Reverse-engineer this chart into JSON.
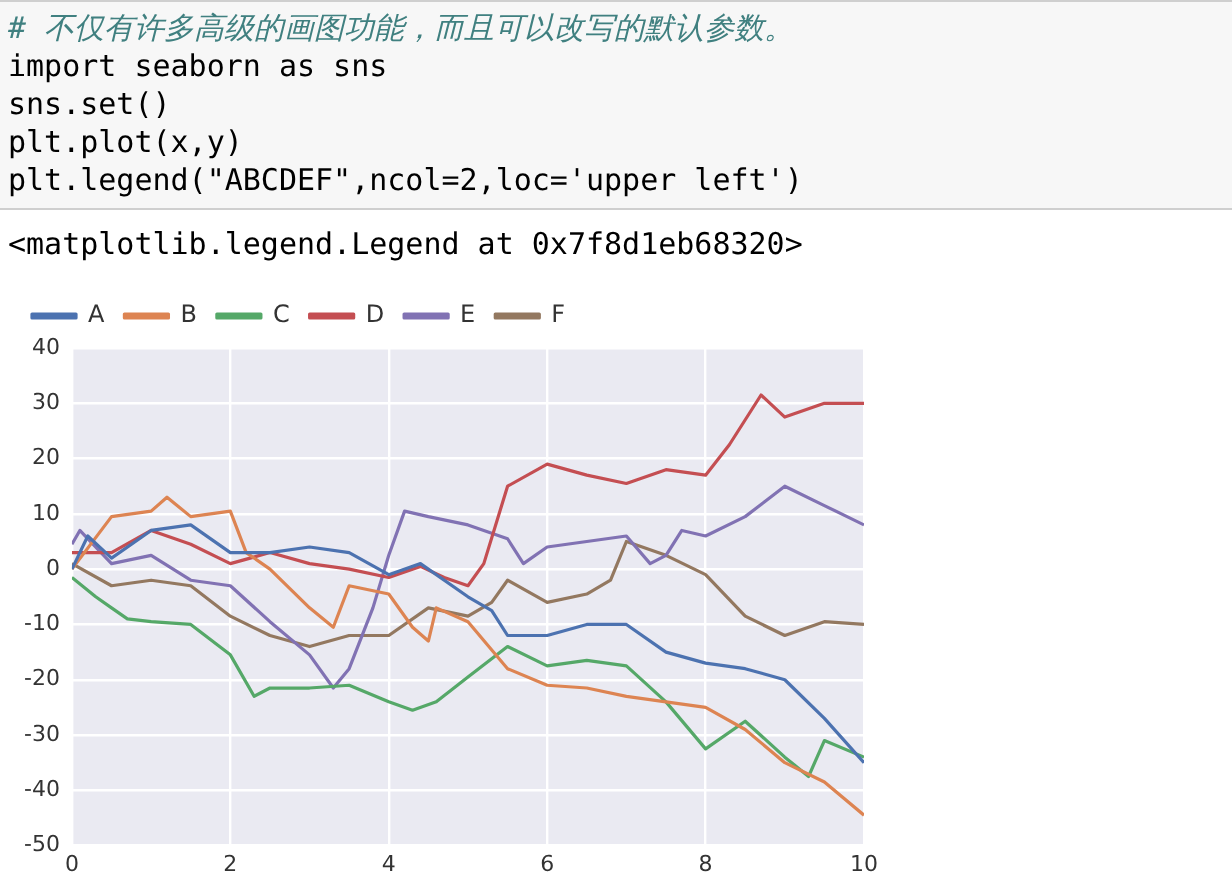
{
  "chart_data": {
    "type": "line",
    "annotations": [
      "# 不仅有许多高级的画图功能，而且可以改写的默认参数。",
      "import seaborn as sns",
      "sns.set()",
      "plt.plot(x,y)",
      "plt.legend(\"ABCDEF\",ncol=2,loc='upper left')",
      "<matplotlib.legend.Legend at 0x7f8d1eb68320>"
    ],
    "series": [
      {
        "name": "A",
        "color": "#4c72b0",
        "x": [
          0,
          0.2,
          0.5,
          1,
          1.5,
          2,
          2.5,
          3,
          3.5,
          4,
          4.4,
          5,
          5.3,
          5.5,
          6,
          6.5,
          7,
          7.5,
          8,
          8.5,
          9,
          9.5,
          10
        ],
        "values": [
          0,
          6,
          2,
          7,
          8,
          3,
          3,
          4,
          3,
          -1,
          1,
          -5,
          -7.5,
          -12,
          -12,
          -10,
          -10,
          -15,
          -17,
          -18,
          -20,
          -27,
          -35
        ]
      },
      {
        "name": "B",
        "color": "#dd8452",
        "x": [
          0,
          0.5,
          1,
          1.2,
          1.5,
          2,
          2.2,
          2.5,
          3,
          3.3,
          3.5,
          4,
          4.3,
          4.5,
          4.6,
          5,
          5.5,
          6,
          6.5,
          7,
          7.5,
          8,
          8.5,
          9,
          9.5,
          10
        ],
        "values": [
          0,
          9.5,
          10.5,
          13,
          9.5,
          10.5,
          3,
          0,
          -7,
          -10.5,
          -3,
          -4.5,
          -10.5,
          -13,
          -7,
          -9.5,
          -18,
          -21,
          -21.5,
          -23,
          -24,
          -25,
          -29,
          -35,
          -38.5,
          -44.5
        ]
      },
      {
        "name": "C",
        "color": "#55a868",
        "x": [
          0,
          0.3,
          0.5,
          0.7,
          1,
          1.5,
          2,
          2.3,
          2.5,
          3,
          3.5,
          4,
          4.3,
          4.6,
          5,
          5.5,
          6,
          6.5,
          7,
          7.5,
          8,
          8.5,
          9,
          9.3,
          9.5,
          10
        ],
        "values": [
          -1.5,
          -5,
          -7,
          -9,
          -9.5,
          -10,
          -15.5,
          -23,
          -21.5,
          -21.5,
          -21,
          -24,
          -25.5,
          -24,
          -19.5,
          -14,
          -17.5,
          -16.5,
          -17.5,
          -24,
          -32.5,
          -27.5,
          -34,
          -37.5,
          -31,
          -34
        ]
      },
      {
        "name": "D",
        "color": "#c44e52",
        "x": [
          0,
          0.5,
          1,
          1.5,
          2,
          2.5,
          3,
          3.5,
          4,
          4.4,
          4.7,
          5,
          5.2,
          5.5,
          6,
          6.5,
          7,
          7.5,
          8,
          8.3,
          8.7,
          9,
          9.5,
          10
        ],
        "values": [
          3,
          3,
          7,
          4.5,
          1,
          3,
          1,
          0,
          -1.5,
          0.5,
          -1.5,
          -3,
          1,
          15,
          19,
          17,
          15.5,
          18,
          17,
          22.5,
          31.5,
          27.5,
          30,
          30
        ]
      },
      {
        "name": "E",
        "color": "#8172b3",
        "x": [
          0,
          0.1,
          0.5,
          1,
          1.5,
          2,
          2.5,
          3,
          3.3,
          3.5,
          3.8,
          4,
          4.2,
          4.5,
          5,
          5.5,
          5.7,
          6,
          6.5,
          7,
          7.3,
          7.5,
          7.7,
          8,
          8.5,
          9,
          9.5,
          10
        ],
        "values": [
          4.5,
          7,
          1,
          2.5,
          -2,
          -3,
          -9.5,
          -15.5,
          -21.5,
          -18,
          -7,
          2.5,
          10.5,
          9.5,
          8,
          5.5,
          1,
          4,
          5,
          6,
          1,
          2.5,
          7,
          6,
          9.5,
          15,
          11.5,
          8
        ]
      },
      {
        "name": "F",
        "color": "#937860",
        "x": [
          0,
          0.5,
          1,
          1.5,
          2,
          2.5,
          3,
          3.5,
          4,
          4.5,
          5,
          5.3,
          5.5,
          6,
          6.5,
          6.8,
          7,
          7.5,
          8,
          8.5,
          9,
          9.5,
          10
        ],
        "values": [
          1,
          -3,
          -2,
          -3,
          -8.5,
          -12,
          -14,
          -12,
          -12,
          -7,
          -8.5,
          -6,
          -2,
          -6,
          -4.5,
          -2,
          5,
          2.5,
          -1,
          -8.5,
          -12,
          -9.5,
          -10
        ]
      }
    ],
    "xlim": [
      0,
      10
    ],
    "xticks": [
      0,
      2,
      4,
      6,
      8,
      10
    ],
    "ylim": [
      -50,
      40
    ],
    "yticks": [
      -50,
      -40,
      -30,
      -20,
      -10,
      0,
      10,
      20,
      30,
      40
    ],
    "grid": true,
    "legend": "top left",
    "marker": "none",
    "line_style": "solid"
  }
}
